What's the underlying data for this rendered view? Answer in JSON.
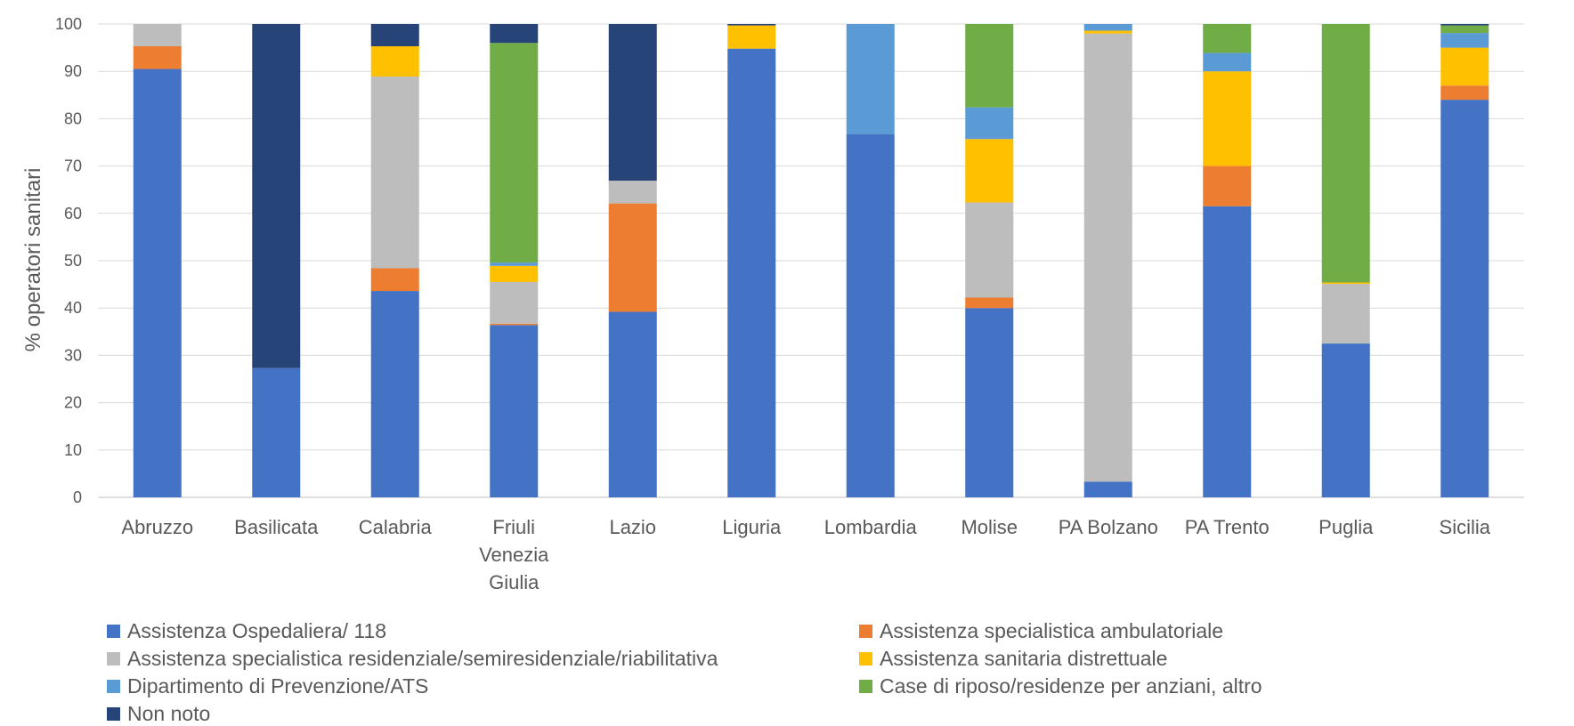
{
  "chart_data": {
    "type": "bar",
    "stacked": true,
    "ylabel": "% operatori sanitari",
    "xlabel": "",
    "ylim": [
      0,
      100
    ],
    "yticks": [
      0,
      10,
      20,
      30,
      40,
      50,
      60,
      70,
      80,
      90,
      100
    ],
    "grid": true,
    "legend_position": "bottom",
    "categories": [
      "Abruzzo",
      "Basilicata",
      "Calabria",
      "Friuli Venezia Giulia",
      "Lazio",
      "Liguria",
      "Lombardia",
      "Molise",
      "PA Bolzano",
      "PA Trento",
      "Puglia",
      "Sicilia"
    ],
    "category_lines": [
      [
        "Abruzzo"
      ],
      [
        "Basilicata"
      ],
      [
        "Calabria"
      ],
      [
        "Friuli",
        "Venezia",
        "Giulia"
      ],
      [
        "Lazio"
      ],
      [
        "Liguria"
      ],
      [
        "Lombardia"
      ],
      [
        "Molise"
      ],
      [
        "PA Bolzano"
      ],
      [
        "PA Trento"
      ],
      [
        "Puglia"
      ],
      [
        "Sicilia"
      ]
    ],
    "series": [
      {
        "name": "Assistenza Ospedaliera/ 118",
        "color": "#4472C4",
        "values": [
          90.5,
          27.3,
          43.6,
          36.4,
          39.2,
          94.8,
          76.7,
          40.0,
          3.3,
          61.5,
          32.5,
          84.0
        ]
      },
      {
        "name": "Assistenza specialistica ambulatoriale",
        "color": "#ED7D31",
        "values": [
          4.8,
          0,
          4.8,
          0.3,
          22.9,
          0,
          0,
          2.2,
          0,
          8.5,
          0,
          3.0
        ]
      },
      {
        "name": "Assistenza specialistica residenziale/semiresidenziale/riabilitativa",
        "color": "#BDBDBD",
        "values": [
          4.7,
          0,
          40.5,
          8.8,
          4.8,
          0,
          0,
          20.1,
          94.7,
          0,
          12.6,
          0
        ]
      },
      {
        "name": "Assistenza sanitaria distrettuale",
        "color": "#FFC000",
        "values": [
          0,
          0,
          6.4,
          3.4,
          0,
          4.9,
          0,
          13.4,
          0.6,
          20.0,
          0.3,
          8.0
        ]
      },
      {
        "name": "Dipartimento di Prevenzione/ATS",
        "color": "#5B9BD5",
        "values": [
          0,
          0,
          0,
          0.7,
          0,
          0,
          23.3,
          6.7,
          1.4,
          3.9,
          0,
          3.1
        ]
      },
      {
        "name": "Case di riposo/residenze per anziani, altro",
        "color": "#70AD47",
        "values": [
          0,
          0,
          0,
          46.4,
          0,
          0,
          0,
          17.6,
          0,
          6.1,
          54.6,
          1.6
        ]
      },
      {
        "name": "Non noto",
        "color": "#264478",
        "values": [
          0,
          72.7,
          4.7,
          4.0,
          33.1,
          0.3,
          0,
          0,
          0,
          0,
          0,
          0.3
        ]
      }
    ]
  }
}
